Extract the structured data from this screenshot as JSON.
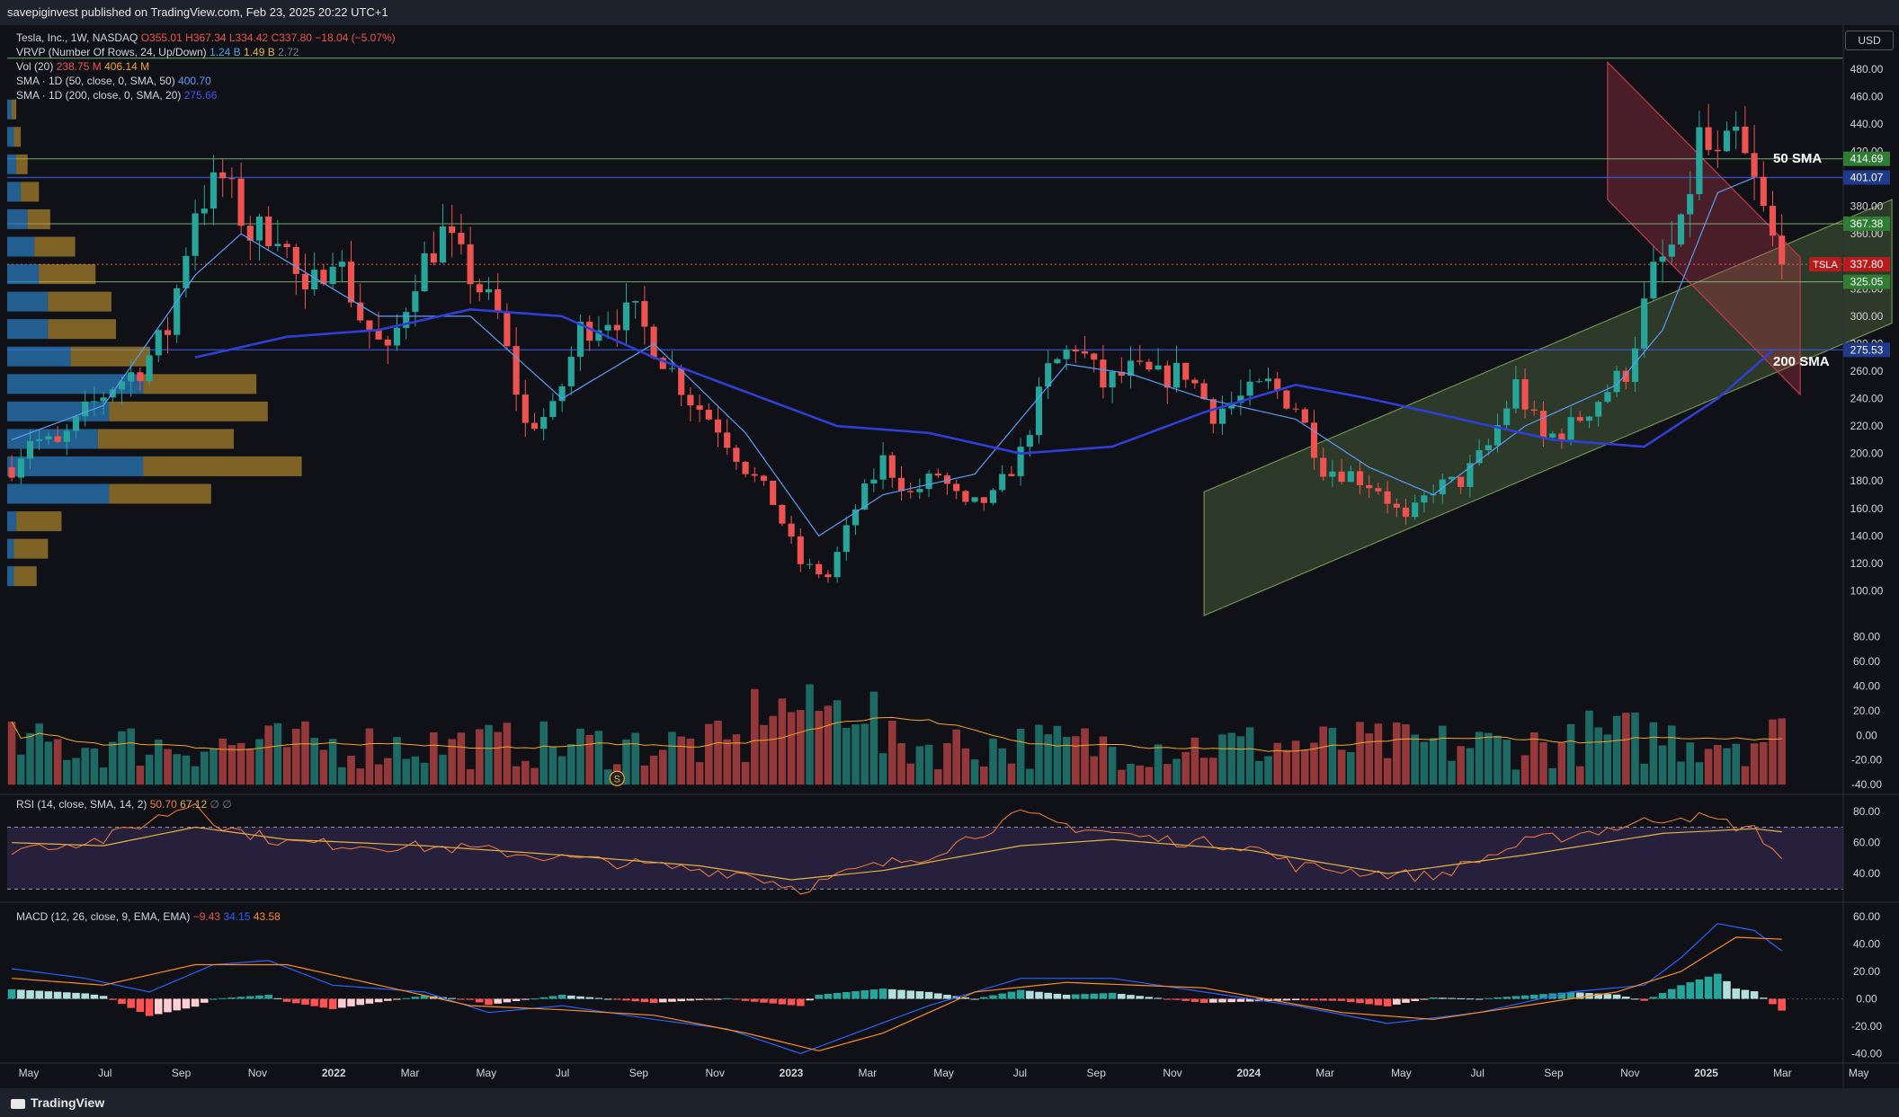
{
  "header": {
    "published": "savepiginvest published on TradingView.com, Feb 23, 2025 20:22 UTC+1"
  },
  "footer": {
    "brand": "TradingView"
  },
  "currency": "USD",
  "legend": {
    "symbol": "Tesla, Inc., 1W, NASDAQ",
    "open": "O355.01",
    "high": "H367.34",
    "low": "L334.42",
    "close": "C337.80",
    "change": "−18.04 (−5.07%)",
    "vrvp": "VRVP (Number Of Rows, 24, Up/Down)",
    "vrvp_up": "1.24 B",
    "vrvp_down": "1.49 B",
    "vrvp_total": "2.72",
    "vol": "Vol (20)",
    "vol_v1": "238.75 M",
    "vol_v2": "406.14 M",
    "sma50": "SMA · 1D (50, close, 0, SMA, 50)",
    "sma50_v": "400.70",
    "sma200": "SMA · 1D (200, close, 0, SMA, 20)",
    "sma200_v": "275.66",
    "rsi": "RSI (14, close, SMA, 14, 2)",
    "rsi_v1": "50.70",
    "rsi_v2": "67.12",
    "rsi_na": "∅ ∅",
    "macd": "MACD (12, 26, close, 9, EMA, EMA)",
    "macd_v1": "−9.43",
    "macd_v2": "34.15",
    "macd_v3": "43.58"
  },
  "annotations": {
    "sma50_label": "50 SMA",
    "sma200_label": "200 SMA",
    "split_marker": "S"
  },
  "colors": {
    "up": "#26a69a",
    "down": "#ef5350",
    "sma50": "#5b9cf6",
    "sma200": "#2f3fd6",
    "hline": "#8fcf8f",
    "rsi": "#f57c3a",
    "rsi_ma": "#e3b341",
    "macd": "#2962ff",
    "signal": "#ff8c1a"
  },
  "chart_data": [
    {
      "type": "candlestick",
      "title": "Tesla, Inc., 1W, NASDAQ",
      "x_ticks": [
        "May",
        "Jul",
        "Sep",
        "Nov",
        "2022",
        "Mar",
        "May",
        "Jul",
        "Sep",
        "Nov",
        "2023",
        "Mar",
        "May",
        "Jul",
        "Sep",
        "Nov",
        "2024",
        "Mar",
        "May",
        "Jul",
        "Sep",
        "Nov",
        "2025",
        "Mar",
        "May"
      ],
      "y_ticks": [
        100,
        120,
        140,
        160,
        180,
        200,
        220,
        240,
        260,
        280,
        300,
        320,
        340,
        360,
        380,
        400,
        420,
        440,
        460,
        480
      ],
      "ylim": [
        80,
        495
      ],
      "price_path": [
        [
          0,
          190
        ],
        [
          2,
          212
        ],
        [
          5,
          205
        ],
        [
          8,
          230
        ],
        [
          11,
          250
        ],
        [
          14,
          262
        ],
        [
          17,
          290
        ],
        [
          20,
          380
        ],
        [
          23,
          400
        ],
        [
          26,
          360
        ],
        [
          29,
          365
        ],
        [
          32,
          310
        ],
        [
          35,
          350
        ],
        [
          38,
          300
        ],
        [
          41,
          270
        ],
        [
          44,
          330
        ],
        [
          47,
          360
        ],
        [
          50,
          330
        ],
        [
          53,
          300
        ],
        [
          56,
          220
        ],
        [
          59,
          230
        ],
        [
          62,
          290
        ],
        [
          65,
          300
        ],
        [
          68,
          300
        ],
        [
          71,
          270
        ],
        [
          74,
          240
        ],
        [
          77,
          220
        ],
        [
          80,
          190
        ],
        [
          83,
          165
        ],
        [
          86,
          120
        ],
        [
          89,
          110
        ],
        [
          92,
          160
        ],
        [
          95,
          195
        ],
        [
          98,
          170
        ],
        [
          101,
          185
        ],
        [
          104,
          160
        ],
        [
          107,
          168
        ],
        [
          110,
          200
        ],
        [
          113,
          260
        ],
        [
          116,
          280
        ],
        [
          119,
          250
        ],
        [
          122,
          260
        ],
        [
          125,
          255
        ],
        [
          128,
          260
        ],
        [
          131,
          230
        ],
        [
          134,
          240
        ],
        [
          137,
          250
        ],
        [
          140,
          235
        ],
        [
          143,
          190
        ],
        [
          146,
          185
        ],
        [
          149,
          175
        ],
        [
          152,
          150
        ],
        [
          155,
          175
        ],
        [
          158,
          180
        ],
        [
          161,
          205
        ],
        [
          164,
          250
        ],
        [
          167,
          210
        ],
        [
          170,
          220
        ],
        [
          173,
          240
        ],
        [
          176,
          260
        ],
        [
          179,
          330
        ],
        [
          182,
          360
        ],
        [
          184,
          430
        ],
        [
          186,
          410
        ],
        [
          188,
          430
        ],
        [
          190,
          395
        ],
        [
          192,
          355
        ],
        [
          193,
          337.8
        ]
      ],
      "last_price": 337.8,
      "price_tags": [
        {
          "label": "414.69",
          "value": 414.69,
          "color": "#2e7d32"
        },
        {
          "label": "401.07",
          "value": 401.07,
          "color": "#1e3a8a"
        },
        {
          "label": "367.38",
          "value": 367.38,
          "color": "#2e7d32"
        },
        {
          "label": "TSLA",
          "value": 337.8,
          "color": "#b71c1c"
        },
        {
          "label": "337.80",
          "value": 337.8,
          "color": "#b71c1c"
        },
        {
          "label": "325.05",
          "value": 325.05,
          "color": "#2e7d32"
        },
        {
          "label": "275.53",
          "value": 275.53,
          "color": "#1e3a8a"
        }
      ],
      "horizontal_levels": [
        488,
        414.69,
        401.07,
        367.38,
        325.05,
        275.53
      ],
      "sma50_path": [
        [
          0,
          210
        ],
        [
          10,
          235
        ],
        [
          20,
          330
        ],
        [
          25,
          360
        ],
        [
          30,
          340
        ],
        [
          40,
          300
        ],
        [
          50,
          300
        ],
        [
          60,
          240
        ],
        [
          70,
          280
        ],
        [
          80,
          215
        ],
        [
          88,
          140
        ],
        [
          95,
          170
        ],
        [
          105,
          185
        ],
        [
          115,
          265
        ],
        [
          122,
          258
        ],
        [
          130,
          240
        ],
        [
          140,
          225
        ],
        [
          148,
          190
        ],
        [
          155,
          170
        ],
        [
          165,
          220
        ],
        [
          175,
          250
        ],
        [
          180,
          290
        ],
        [
          186,
          390
        ],
        [
          190,
          401
        ]
      ],
      "sma200_path": [
        [
          20,
          270
        ],
        [
          30,
          285
        ],
        [
          40,
          290
        ],
        [
          50,
          305
        ],
        [
          60,
          300
        ],
        [
          70,
          270
        ],
        [
          80,
          245
        ],
        [
          90,
          220
        ],
        [
          100,
          215
        ],
        [
          110,
          200
        ],
        [
          120,
          205
        ],
        [
          130,
          230
        ],
        [
          140,
          250
        ],
        [
          148,
          240
        ],
        [
          158,
          225
        ],
        [
          168,
          210
        ],
        [
          178,
          205
        ],
        [
          186,
          240
        ],
        [
          192,
          275
        ]
      ],
      "vrvp_rows": [
        {
          "price": 450,
          "up": 2,
          "down": 2
        },
        {
          "price": 430,
          "up": 3,
          "down": 3
        },
        {
          "price": 410,
          "up": 4,
          "down": 5
        },
        {
          "price": 390,
          "up": 6,
          "down": 8
        },
        {
          "price": 370,
          "up": 9,
          "down": 10
        },
        {
          "price": 350,
          "up": 12,
          "down": 18
        },
        {
          "price": 330,
          "up": 14,
          "down": 25
        },
        {
          "price": 310,
          "up": 18,
          "down": 28
        },
        {
          "price": 290,
          "up": 18,
          "down": 30
        },
        {
          "price": 270,
          "up": 28,
          "down": 35
        },
        {
          "price": 250,
          "up": 60,
          "down": 50
        },
        {
          "price": 230,
          "up": 45,
          "down": 70
        },
        {
          "price": 210,
          "up": 40,
          "down": 60
        },
        {
          "price": 190,
          "up": 60,
          "down": 70
        },
        {
          "price": 170,
          "up": 45,
          "down": 45
        },
        {
          "price": 150,
          "up": 4,
          "down": 20
        },
        {
          "price": 130,
          "up": 3,
          "down": 15
        },
        {
          "price": 110,
          "up": 3,
          "down": 10
        }
      ],
      "channels": [
        {
          "name": "ascending",
          "color": "#6e8f4e",
          "lower": [
            [
              130,
              82
            ],
            [
              205,
              295
            ]
          ],
          "width": 90
        },
        {
          "name": "descending",
          "color": "#c0394b",
          "upper": [
            [
              174,
              485
            ],
            [
              195,
              343
            ]
          ],
          "width": 100
        }
      ]
    },
    {
      "type": "bar",
      "title": "Vol (20)",
      "y_ticks": [
        -40,
        -20,
        0,
        20,
        40,
        60,
        80
      ],
      "ylim": [
        -45,
        95
      ]
    },
    {
      "type": "line",
      "title": "RSI (14, close, SMA, 14, 2)",
      "y_ticks": [
        40,
        60,
        80
      ],
      "ylim": [
        25,
        90
      ],
      "bands": [
        30,
        70
      ],
      "rsi_path": [
        [
          0,
          56
        ],
        [
          10,
          62
        ],
        [
          20,
          86
        ],
        [
          23,
          70
        ],
        [
          30,
          60
        ],
        [
          40,
          58
        ],
        [
          50,
          56
        ],
        [
          60,
          50
        ],
        [
          70,
          45
        ],
        [
          80,
          40
        ],
        [
          86,
          30
        ],
        [
          92,
          42
        ],
        [
          100,
          52
        ],
        [
          110,
          78
        ],
        [
          116,
          70
        ],
        [
          125,
          62
        ],
        [
          135,
          58
        ],
        [
          140,
          45
        ],
        [
          150,
          40
        ],
        [
          155,
          38
        ],
        [
          165,
          60
        ],
        [
          175,
          70
        ],
        [
          182,
          78
        ],
        [
          186,
          74
        ],
        [
          190,
          68
        ],
        [
          193,
          50.7
        ]
      ],
      "rsi_ma_path": [
        [
          0,
          60
        ],
        [
          10,
          58
        ],
        [
          20,
          70
        ],
        [
          30,
          62
        ],
        [
          45,
          58
        ],
        [
          60,
          52
        ],
        [
          75,
          45
        ],
        [
          85,
          36
        ],
        [
          95,
          42
        ],
        [
          110,
          58
        ],
        [
          120,
          62
        ],
        [
          135,
          55
        ],
        [
          150,
          40
        ],
        [
          165,
          52
        ],
        [
          180,
          66
        ],
        [
          190,
          69
        ],
        [
          193,
          67
        ]
      ]
    },
    {
      "type": "line",
      "title": "MACD (12, 26, close, 9, EMA, EMA)",
      "y_ticks": [
        -40,
        -20,
        0,
        20,
        40,
        60
      ],
      "ylim": [
        -45,
        68
      ],
      "macd_path": [
        [
          0,
          22
        ],
        [
          8,
          15
        ],
        [
          15,
          5
        ],
        [
          22,
          25
        ],
        [
          28,
          28
        ],
        [
          35,
          10
        ],
        [
          45,
          5
        ],
        [
          52,
          -10
        ],
        [
          60,
          -5
        ],
        [
          70,
          -15
        ],
        [
          78,
          -22
        ],
        [
          86,
          -40
        ],
        [
          92,
          -25
        ],
        [
          100,
          -5
        ],
        [
          110,
          15
        ],
        [
          120,
          15
        ],
        [
          130,
          5
        ],
        [
          140,
          -5
        ],
        [
          150,
          -18
        ],
        [
          160,
          -10
        ],
        [
          170,
          5
        ],
        [
          178,
          10
        ],
        [
          182,
          30
        ],
        [
          186,
          55
        ],
        [
          190,
          50
        ],
        [
          193,
          35
        ]
      ],
      "signal_path": [
        [
          0,
          15
        ],
        [
          10,
          10
        ],
        [
          20,
          25
        ],
        [
          30,
          25
        ],
        [
          40,
          10
        ],
        [
          50,
          -5
        ],
        [
          60,
          -8
        ],
        [
          70,
          -12
        ],
        [
          80,
          -25
        ],
        [
          88,
          -38
        ],
        [
          95,
          -25
        ],
        [
          105,
          5
        ],
        [
          115,
          12
        ],
        [
          130,
          8
        ],
        [
          145,
          -10
        ],
        [
          155,
          -15
        ],
        [
          165,
          -5
        ],
        [
          175,
          5
        ],
        [
          182,
          20
        ],
        [
          188,
          45
        ],
        [
          193,
          43.6
        ]
      ]
    }
  ]
}
